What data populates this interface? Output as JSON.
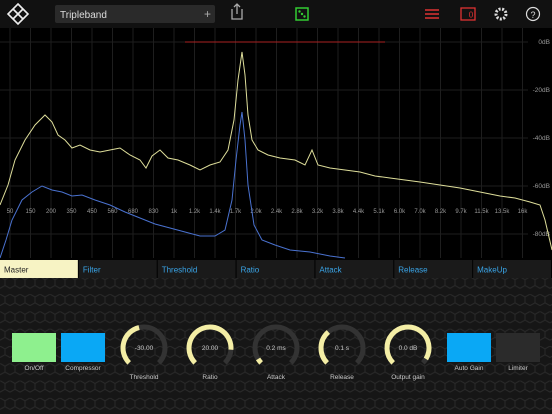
{
  "header": {
    "preset": "Tripleband",
    "plus": "+",
    "badge": "0"
  },
  "spectrum": {
    "freq_labels": [
      "50",
      "150",
      "200",
      "350",
      "450",
      "560",
      "680",
      "830",
      "1k",
      "1.2k",
      "1.4k",
      "1.7k",
      "2.0k",
      "2.4k",
      "2.8k",
      "3.2k",
      "3.8k",
      "4.4k",
      "5.1k",
      "6.0k",
      "7.0k",
      "8.2k",
      "9.7k",
      "11.5k",
      "13.5k",
      "16k"
    ],
    "db_labels": [
      "0dB",
      "-20dB",
      "-40dB",
      "-60dB",
      "-80dB"
    ]
  },
  "tabs": [
    "Master",
    "Filter",
    "Threshold",
    "Ratio",
    "Attack",
    "Release",
    "MakeUp"
  ],
  "controls": [
    {
      "label": "On/Off"
    },
    {
      "label": "Compressor"
    },
    {
      "label": "Threshold",
      "value": "-30.00"
    },
    {
      "label": "Ratio",
      "value": "20.00"
    },
    {
      "label": "Attack",
      "value": "0.2 ms"
    },
    {
      "label": "Release",
      "value": "0.1 s"
    },
    {
      "label": "Output gain",
      "value": "0.0 dB"
    },
    {
      "label": "Auto Gain"
    },
    {
      "label": "Limiter"
    }
  ]
}
